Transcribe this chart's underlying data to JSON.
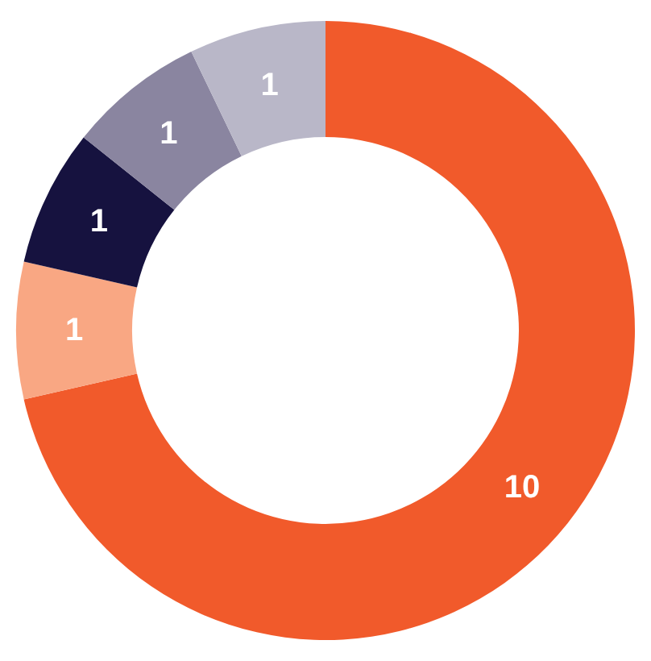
{
  "chart_data": {
    "type": "donut",
    "categories": [
      null,
      null,
      null,
      null,
      null
    ],
    "values": [
      10,
      1,
      1,
      1,
      1
    ],
    "colors": [
      "#f15a2b",
      "#f9a783",
      "#16123f",
      "#8a85a0",
      "#b9b7c8"
    ],
    "data_labels": true,
    "legend": false
  }
}
